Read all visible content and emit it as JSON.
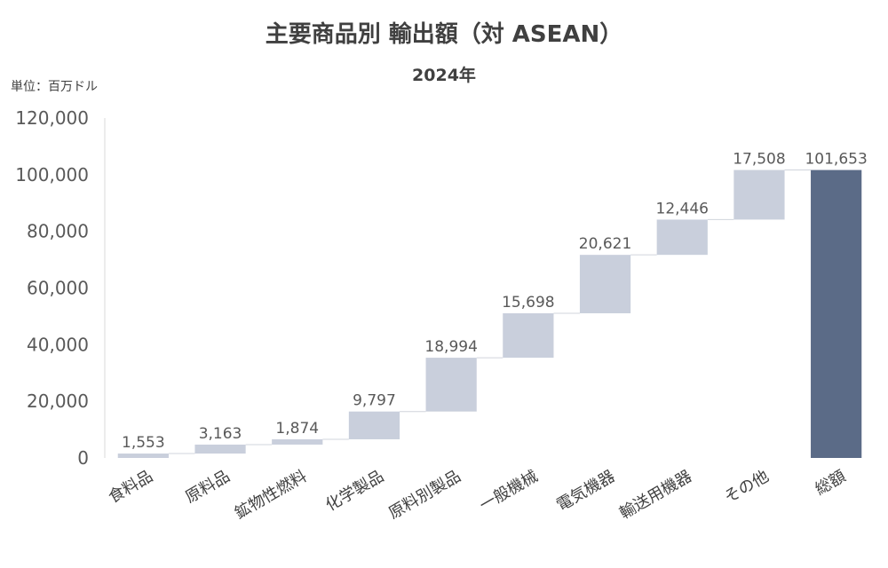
{
  "chart_data": {
    "type": "waterfall",
    "title": "主要商品別 輸出額（対 ASEAN）",
    "subtitle": "2024年",
    "unit_label": "単位：百万ドル",
    "categories": [
      "食料品",
      "原料品",
      "鉱物性燃料",
      "化学製品",
      "原料別製品",
      "一般機械",
      "電気機器",
      "輸送用機器",
      "その他",
      "総額"
    ],
    "values": [
      1553,
      3163,
      1874,
      9797,
      18994,
      15698,
      20621,
      12446,
      17508,
      101653
    ],
    "value_labels": [
      "1,553",
      "3,163",
      "1,874",
      "9,797",
      "18,994",
      "15,698",
      "20,621",
      "12,446",
      "17,508",
      "101,653"
    ],
    "total_index": 9,
    "ylim": [
      0,
      120000
    ],
    "yticks": [
      0,
      20000,
      40000,
      60000,
      80000,
      100000,
      120000
    ],
    "ytick_labels": [
      "0",
      "20,000",
      "40,000",
      "60,000",
      "80,000",
      "100,000",
      "120,000"
    ],
    "colors": {
      "step": "#c9cfdc",
      "total": "#5b6b87",
      "connector": "#d0d4dc",
      "axis": "#d9d9d9"
    }
  }
}
